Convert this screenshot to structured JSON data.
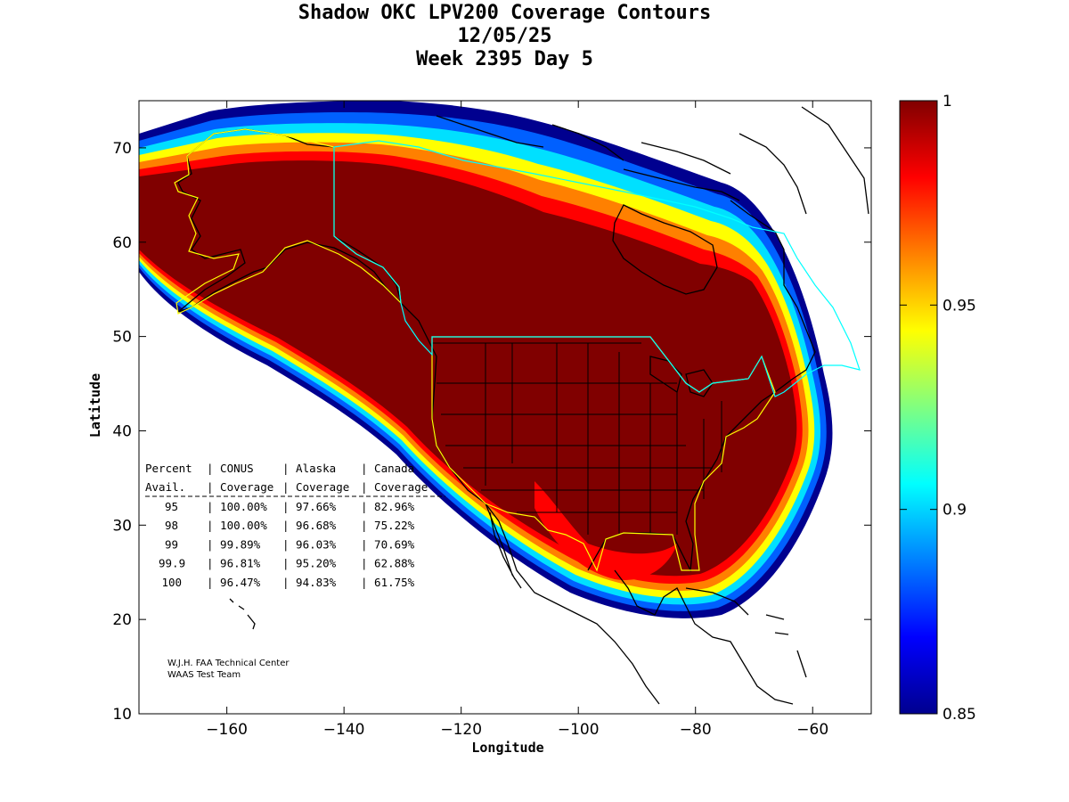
{
  "title": {
    "line1": "Shadow OKC LPV200 Coverage Contours",
    "line2": "12/05/25",
    "line3": "Week 2395 Day 5"
  },
  "axes": {
    "xlabel": "Longitude",
    "ylabel": "Latitude",
    "xlim": [
      -175,
      -50
    ],
    "ylim": [
      10,
      75
    ],
    "xticks": [
      -160,
      -140,
      -120,
      -100,
      -80,
      -60
    ],
    "yticks": [
      10,
      20,
      30,
      40,
      50,
      60,
      70
    ]
  },
  "colorbar": {
    "range": [
      0.85,
      1
    ],
    "ticks": [
      "1",
      "0.95",
      "0.9",
      "0.85"
    ],
    "colormap": [
      "#00008f",
      "#0000ff",
      "#0080ff",
      "#00ffff",
      "#80ff80",
      "#ffff00",
      "#ff8000",
      "#ff0000",
      "#800000"
    ]
  },
  "table": {
    "header1": [
      "Percent",
      "CONUS",
      "Alaska",
      "Canada"
    ],
    "header2": [
      "Avail.",
      "Coverage",
      "Coverage",
      "Coverage"
    ],
    "rows": [
      [
        "95",
        "100.00%",
        "97.66%",
        "82.96%"
      ],
      [
        "98",
        "100.00%",
        "96.68%",
        "75.22%"
      ],
      [
        "99",
        "99.89%",
        "96.03%",
        "70.69%"
      ],
      [
        "99.9",
        "96.81%",
        "95.20%",
        "62.88%"
      ],
      [
        "100",
        "96.47%",
        "94.83%",
        "61.75%"
      ]
    ]
  },
  "credit": {
    "line1": "W.J.H. FAA Technical Center",
    "line2": "WAAS Test Team"
  },
  "colors": {
    "conus_boundary": "#ffff00",
    "canada_boundary": "#00ffff",
    "coastline": "#000000"
  }
}
